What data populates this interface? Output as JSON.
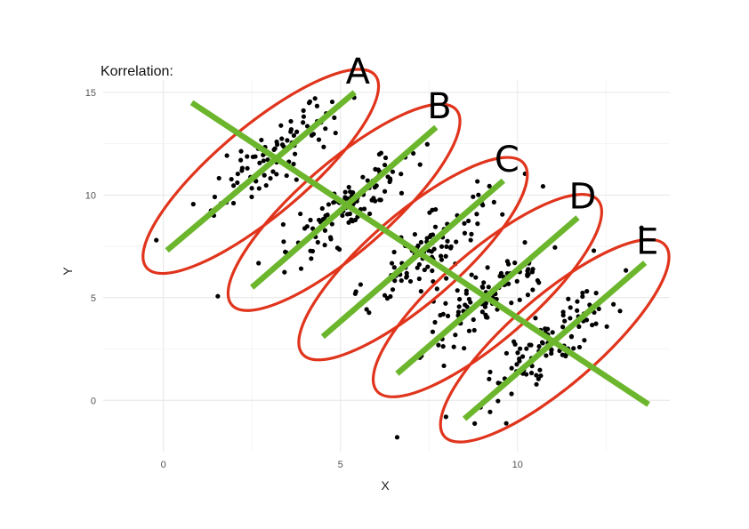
{
  "chart_data": {
    "type": "scatter",
    "title": "Korrelation:",
    "xlabel": "X",
    "ylabel": "Y",
    "xlim": [
      -1.7,
      14.3
    ],
    "ylim": [
      -2.5,
      15.6
    ],
    "x_ticks": [
      0,
      5,
      10
    ],
    "y_ticks": [
      0,
      5,
      10,
      15
    ],
    "x_tick_labels": [
      "0",
      "5",
      "10"
    ],
    "y_tick_labels": [
      "0",
      "5",
      "10",
      "15"
    ],
    "grid": true,
    "point_color": "#000000",
    "ellipse_color": "#e0341c",
    "line_color": "#6cb62d",
    "groups": [
      {
        "label": "A",
        "center": [
          3.2,
          12.0
        ],
        "n": 90
      },
      {
        "label": "B",
        "center": [
          5.2,
          9.5
        ],
        "n": 100
      },
      {
        "label": "C",
        "center": [
          7.5,
          7.3
        ],
        "n": 100
      },
      {
        "label": "D",
        "center": [
          9.2,
          5.0
        ],
        "n": 100
      },
      {
        "label": "E",
        "center": [
          11.0,
          2.8
        ],
        "n": 100
      }
    ],
    "group_lines": [
      {
        "label": "A",
        "x": [
          0.1,
          5.4
        ],
        "y": [
          7.3,
          15.0
        ]
      },
      {
        "label": "B",
        "x": [
          2.5,
          7.7
        ],
        "y": [
          5.5,
          13.3
        ]
      },
      {
        "label": "C",
        "x": [
          4.5,
          9.6
        ],
        "y": [
          3.1,
          10.7
        ]
      },
      {
        "label": "D",
        "x": [
          6.6,
          11.7
        ],
        "y": [
          1.3,
          8.9
        ]
      },
      {
        "label": "E",
        "x": [
          8.5,
          13.6
        ],
        "y": [
          -0.9,
          6.7
        ]
      }
    ],
    "between_group_line": {
      "x": [
        0.8,
        13.7
      ],
      "y": [
        14.5,
        -0.2
      ]
    },
    "outliers": [
      [
        -0.2,
        7.8
      ],
      [
        6.6,
        -1.8
      ],
      [
        13.5,
        8.4
      ]
    ]
  }
}
